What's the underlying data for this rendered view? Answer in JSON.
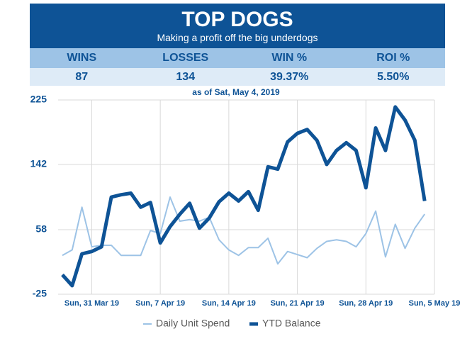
{
  "header": {
    "title": "TOP DOGS",
    "subtitle": "Making a profit off the big underdogs"
  },
  "stats": {
    "labels": [
      "WINS",
      "LOSSES",
      "WIN %",
      "ROI %"
    ],
    "values": [
      "87",
      "134",
      "39.37%",
      "5.50%"
    ]
  },
  "as_of": "as of Sat, May 4, 2019",
  "chart_data": {
    "type": "line",
    "x": [
      "2019-03-28",
      "2019-03-29",
      "2019-03-30",
      "2019-03-31",
      "2019-04-01",
      "2019-04-02",
      "2019-04-03",
      "2019-04-04",
      "2019-04-05",
      "2019-04-06",
      "2019-04-07",
      "2019-04-08",
      "2019-04-09",
      "2019-04-10",
      "2019-04-11",
      "2019-04-12",
      "2019-04-13",
      "2019-04-14",
      "2019-04-15",
      "2019-04-16",
      "2019-04-17",
      "2019-04-18",
      "2019-04-19",
      "2019-04-20",
      "2019-04-21",
      "2019-04-22",
      "2019-04-23",
      "2019-04-24",
      "2019-04-25",
      "2019-04-26",
      "2019-04-27",
      "2019-04-28",
      "2019-04-29",
      "2019-04-30",
      "2019-05-01",
      "2019-05-02",
      "2019-05-03",
      "2019-05-04"
    ],
    "series": [
      {
        "name": "Daily Unit Spend",
        "color": "#9dc3e6",
        "width": 2,
        "values": [
          25,
          32,
          87,
          36,
          38,
          38,
          25,
          25,
          25,
          57,
          53,
          100,
          69,
          71,
          69,
          74,
          45,
          32,
          25,
          35,
          35,
          47,
          14,
          30,
          26,
          22,
          34,
          43,
          45,
          43,
          36,
          53,
          82,
          23,
          65,
          34,
          60,
          78
        ]
      },
      {
        "name": "YTD Balance",
        "color": "#0e5396",
        "width": 5,
        "values": [
          0,
          -14,
          27,
          30,
          36,
          100,
          103,
          105,
          87,
          93,
          41,
          62,
          78,
          92,
          60,
          73,
          94,
          105,
          95,
          107,
          83,
          139,
          136,
          171,
          182,
          187,
          173,
          142,
          160,
          170,
          160,
          112,
          189,
          160,
          216,
          199,
          173,
          95
        ]
      }
    ],
    "xlim": [
      "2019-03-28",
      "2019-05-05"
    ],
    "xticks": [
      {
        "value": "2019-03-31",
        "label": "Sun, 31 Mar 19"
      },
      {
        "value": "2019-04-07",
        "label": "Sun, 7 Apr 19"
      },
      {
        "value": "2019-04-14",
        "label": "Sun, 14 Apr 19"
      },
      {
        "value": "2019-04-21",
        "label": "Sun, 21 Apr 19"
      },
      {
        "value": "2019-04-28",
        "label": "Sun, 28 Apr 19"
      },
      {
        "value": "2019-05-05",
        "label": "Sun, 5 May 19"
      }
    ],
    "ylim": [
      -25,
      225
    ],
    "yticks": [
      -25,
      58,
      142,
      225
    ],
    "grid": true,
    "legend": "bottom"
  }
}
